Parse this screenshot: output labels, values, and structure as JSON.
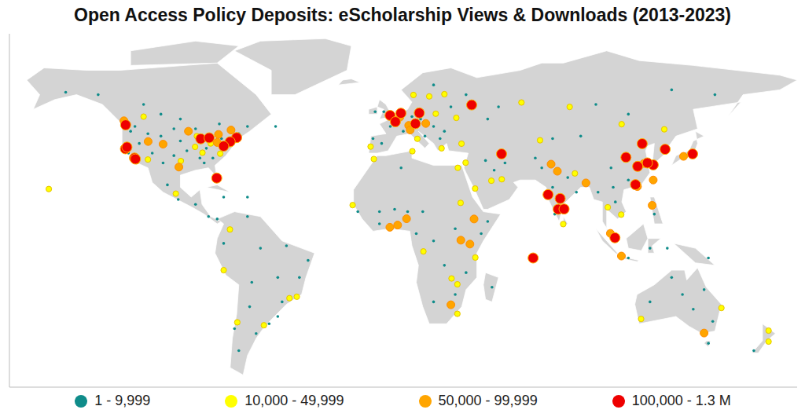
{
  "chart_data": {
    "type": "scatter",
    "title": "Open Access Policy Deposits: eScholarship Views & Downloads (2013-2023)",
    "xlim": [
      -176,
      188
    ],
    "ylim": [
      -60,
      85
    ],
    "tick_labels": false,
    "grid": false,
    "legend": "bottom",
    "series": [
      {
        "name": "1 - 9,999",
        "color": "#0f8c8a",
        "x": [
          -120,
          -118,
          -112,
          -106,
          -100,
          -97,
          -94,
          -100,
          -105,
          -110,
          -116,
          -121,
          -88,
          -85,
          -82,
          -78,
          -70,
          -90,
          -96,
          -86,
          -150,
          -135,
          -114,
          -106,
          -97,
          -79,
          -66,
          -53,
          -103,
          -98,
          -90,
          -84,
          -80,
          -77,
          -66,
          -66,
          -77,
          -60,
          -48,
          -38,
          -42,
          -52,
          -50,
          -52,
          -64,
          -65,
          -62,
          -70,
          -72,
          -56,
          -4,
          -8,
          0,
          6,
          10,
          14,
          20,
          25,
          28,
          23,
          16,
          -3,
          -7,
          20,
          35,
          45,
          50,
          -5,
          -15,
          2,
          8,
          5,
          15,
          20,
          25,
          30,
          42,
          45,
          30,
          20,
          47,
          35,
          -5,
          12,
          44,
          53,
          48,
          67,
          70,
          75,
          82,
          76,
          86,
          96,
          104,
          103,
          110,
          102,
          88,
          75,
          95,
          110,
          130,
          150,
          122,
          110,
          120,
          128,
          147,
          147,
          149,
          140,
          135,
          120,
          130,
          145,
          168
        ],
        "values": [
          45,
          47,
          44,
          43,
          46,
          41,
          37,
          35,
          32,
          36,
          40,
          36,
          34,
          38,
          34,
          42,
          44,
          46,
          33,
          32,
          61,
          60,
          56,
          52,
          50,
          48,
          47,
          47,
          23,
          17,
          15,
          10,
          9,
          18,
          18,
          10,
          -1,
          -3,
          -2,
          -8,
          -15,
          -15,
          -25,
          -31,
          -17,
          -27,
          -38,
          -45,
          -36,
          -34,
          40,
          42,
          47,
          45,
          51,
          50,
          47,
          45,
          55,
          42,
          43,
          53,
          53,
          64,
          60,
          50,
          55,
          12,
          12,
          13,
          12,
          30,
          12,
          0,
          -10,
          5,
          3,
          8,
          -22,
          -25,
          -19,
          -13,
          7,
          3,
          33,
          32,
          29,
          34,
          30,
          22,
          26,
          11,
          20,
          20,
          16,
          22,
          25,
          30,
          43,
          42,
          56,
          52,
          62,
          60,
          11,
          -7,
          -3,
          -3,
          -7,
          -42,
          -33,
          -28,
          -22,
          -25,
          -15,
          -20,
          -45
        ]
      },
      {
        "name": "10,000 - 49,999",
        "color": "#ffff00",
        "x": [
          -157.8,
          -99.1,
          -74.1,
          -77,
          -70.7,
          -58.4,
          -46.6,
          -43.2,
          -112,
          -117.2,
          -96.8,
          -90.2,
          -86.8,
          -78.6,
          -83,
          -89.4,
          -114,
          -9.1,
          12.5,
          23.7,
          21,
          18,
          10.7,
          25,
          30.5,
          31.2,
          -7.6,
          10.2,
          -17.4,
          46.7,
          39.2,
          51.5,
          34.8,
          32.9,
          85.3,
          79.9,
          100.5,
          106.7,
          106.9,
          126.6,
          115.9,
          153,
          174.8,
          174.8,
          39.3,
          28.3,
          31,
          15.3,
          32.5,
          31,
          82.9,
          60.6,
          69.2
        ],
        "values": [
          21.3,
          19.4,
          4.7,
          -12,
          -33.4,
          -34.6,
          -23.5,
          -22.9,
          33.4,
          32.7,
          32.8,
          38.6,
          36.2,
          35.8,
          40,
          43,
          51,
          38.7,
          41.9,
          38,
          52.2,
          59.3,
          59.9,
          60.2,
          50.5,
          30,
          33.6,
          36.8,
          14.7,
          24.7,
          21.5,
          25.3,
          32.1,
          39.9,
          27.7,
          6.9,
          13.8,
          10.8,
          47.9,
          45.8,
          -32,
          -27.5,
          -36.8,
          -41.3,
          -6.8,
          -15.4,
          -17.8,
          -4.3,
          15.6,
          -29.9,
          55,
          56.8,
          41.3
        ]
      },
      {
        "name": "50,000 - 99,999",
        "color": "#ffa500",
        "x": [
          -79.4,
          -73.6,
          -123.1,
          -105,
          -97.7,
          -75.2,
          -80,
          -93.3,
          -111.9,
          4.4,
          8.5,
          9.2,
          16.4,
          3.4,
          7.5,
          -0.2,
          38.7,
          36.8,
          32.6,
          28,
          74.3,
          90.4,
          77.2,
          121.5,
          114.2,
          121,
          101.7,
          106.8,
          145,
          135.5,
          117.2,
          114.1
        ],
        "values": [
          43.7,
          45.5,
          49.3,
          39.7,
          30.3,
          40,
          40.4,
          45,
          40.8,
          50.8,
          47.4,
          45.5,
          48.2,
          6.5,
          9.1,
          5.6,
          9,
          -1.3,
          0.3,
          -26.2,
          31.5,
          23.8,
          28.6,
          25,
          22.3,
          14.6,
          3.1,
          -6.2,
          -37.8,
          34.7,
          31.8,
          22.5
        ]
      },
      {
        "name": "100,000 - 1.3 M",
        "color": "#ee0000",
        "x": [
          -122.4,
          -121.7,
          -118.2,
          -122.3,
          -117.8,
          -87.6,
          -83.7,
          -71,
          -74,
          -77,
          -80.2,
          -0.1,
          2.35,
          4.9,
          13.4,
          11.6,
          37.6,
          51.4,
          72.9,
          77.6,
          78.5,
          80.3,
          103.8,
          116.4,
          121.5,
          113.3,
          114.3,
          118.8,
          108.9,
          127,
          139.7,
          66
        ],
        "values": [
          37.8,
          38.5,
          34,
          47.6,
          33.6,
          41.9,
          42.3,
          42.4,
          40.7,
          38.9,
          25.8,
          51.5,
          48.9,
          52.4,
          52.5,
          48.1,
          55.8,
          35.7,
          19,
          13,
          17.4,
          13.1,
          1.3,
          39.9,
          31.2,
          23.1,
          30.6,
          32,
          34.3,
          37.6,
          35.7,
          -7
        ]
      }
    ]
  }
}
